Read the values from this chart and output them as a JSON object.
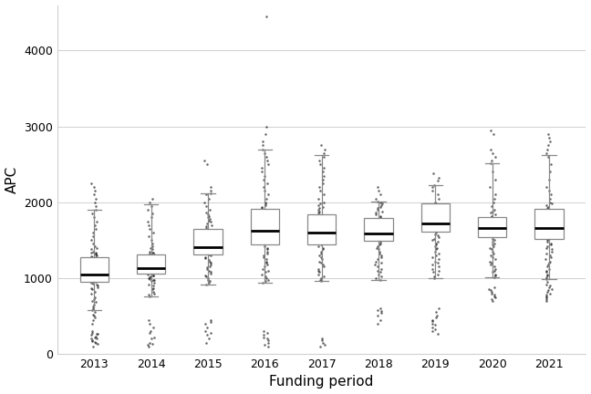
{
  "years": [
    2013,
    2014,
    2015,
    2016,
    2017,
    2018,
    2019,
    2020,
    2021
  ],
  "boxes": {
    "2013": {
      "q1": 950,
      "median": 1050,
      "q3": 1270,
      "whislo": 580,
      "whishi": 1900
    },
    "2014": {
      "q1": 1060,
      "median": 1130,
      "q3": 1310,
      "whislo": 760,
      "whishi": 1970
    },
    "2015": {
      "q1": 1310,
      "median": 1410,
      "q3": 1650,
      "whislo": 920,
      "whishi": 2120
    },
    "2016": {
      "q1": 1440,
      "median": 1620,
      "q3": 1910,
      "whislo": 940,
      "whishi": 2700
    },
    "2017": {
      "q1": 1440,
      "median": 1600,
      "q3": 1840,
      "whislo": 960,
      "whishi": 2620
    },
    "2018": {
      "q1": 1490,
      "median": 1590,
      "q3": 1790,
      "whislo": 980,
      "whishi": 2010
    },
    "2019": {
      "q1": 1610,
      "median": 1720,
      "q3": 1990,
      "whislo": 1000,
      "whishi": 2230
    },
    "2020": {
      "q1": 1540,
      "median": 1655,
      "q3": 1810,
      "whislo": 1010,
      "whishi": 2510
    },
    "2021": {
      "q1": 1510,
      "median": 1660,
      "q3": 1910,
      "whislo": 990,
      "whishi": 2620
    }
  },
  "points": {
    "2013": [
      100,
      130,
      150,
      160,
      170,
      180,
      200,
      210,
      220,
      230,
      250,
      260,
      270,
      280,
      300,
      400,
      450,
      480,
      500,
      520,
      550,
      580,
      600,
      620,
      650,
      680,
      700,
      720,
      750,
      800,
      820,
      850,
      870,
      880,
      900,
      920,
      930,
      940,
      950,
      960,
      970,
      980,
      990,
      1000,
      1010,
      1020,
      1030,
      1040,
      1050,
      1060,
      1070,
      1080,
      1090,
      1100,
      1110,
      1120,
      1130,
      1140,
      1150,
      1160,
      1170,
      1180,
      1190,
      1200,
      1210,
      1220,
      1230,
      1240,
      1250,
      1260,
      1270,
      1280,
      1290,
      1300,
      1310,
      1320,
      1330,
      1340,
      1350,
      1380,
      1400,
      1420,
      1450,
      1500,
      1550,
      1600,
      1650,
      1700,
      1750,
      1800,
      1850,
      1900,
      1950,
      2000,
      2050,
      2100,
      2150,
      2200,
      2250
    ],
    "2014": [
      100,
      120,
      130,
      150,
      200,
      220,
      280,
      300,
      350,
      400,
      450,
      760,
      780,
      800,
      820,
      850,
      870,
      900,
      920,
      940,
      960,
      970,
      980,
      990,
      1000,
      1010,
      1020,
      1030,
      1040,
      1050,
      1060,
      1070,
      1080,
      1090,
      1100,
      1110,
      1120,
      1130,
      1140,
      1150,
      1160,
      1170,
      1180,
      1190,
      1200,
      1210,
      1220,
      1230,
      1240,
      1250,
      1260,
      1270,
      1280,
      1290,
      1300,
      1310,
      1320,
      1330,
      1340,
      1350,
      1380,
      1400,
      1420,
      1450,
      1500,
      1550,
      1600,
      1650,
      1700,
      1750,
      1800,
      1850,
      1900,
      1950,
      2000,
      2050
    ],
    "2015": [
      150,
      200,
      250,
      280,
      300,
      350,
      400,
      420,
      450,
      920,
      940,
      960,
      980,
      1000,
      1020,
      1040,
      1060,
      1080,
      1100,
      1120,
      1140,
      1160,
      1180,
      1200,
      1220,
      1240,
      1260,
      1280,
      1300,
      1310,
      1320,
      1330,
      1340,
      1360,
      1380,
      1400,
      1410,
      1420,
      1440,
      1460,
      1480,
      1500,
      1520,
      1540,
      1560,
      1580,
      1600,
      1620,
      1640,
      1660,
      1680,
      1700,
      1720,
      1740,
      1760,
      1780,
      1800,
      1820,
      1840,
      1860,
      1900,
      1950,
      2000,
      2050,
      2100,
      2120,
      2150,
      2200,
      2500,
      2550
    ],
    "2016": [
      100,
      120,
      150,
      180,
      200,
      220,
      250,
      280,
      300,
      940,
      960,
      980,
      1000,
      1020,
      1050,
      1080,
      1100,
      1120,
      1150,
      1180,
      1200,
      1220,
      1250,
      1280,
      1300,
      1320,
      1350,
      1380,
      1400,
      1420,
      1440,
      1460,
      1480,
      1500,
      1520,
      1540,
      1560,
      1580,
      1600,
      1620,
      1640,
      1660,
      1680,
      1700,
      1720,
      1740,
      1760,
      1780,
      1800,
      1820,
      1840,
      1860,
      1880,
      1900,
      1920,
      1940,
      1960,
      1980,
      2000,
      2050,
      2100,
      2150,
      2200,
      2250,
      2300,
      2350,
      2400,
      2450,
      2500,
      2550,
      2600,
      2650,
      2700,
      2750,
      2800,
      2900,
      3000,
      4450
    ],
    "2017": [
      100,
      120,
      150,
      180,
      200,
      960,
      980,
      1000,
      1020,
      1050,
      1080,
      1100,
      1120,
      1150,
      1180,
      1200,
      1220,
      1250,
      1280,
      1300,
      1320,
      1350,
      1380,
      1400,
      1420,
      1440,
      1460,
      1480,
      1500,
      1520,
      1540,
      1560,
      1580,
      1600,
      1620,
      1640,
      1660,
      1680,
      1700,
      1720,
      1740,
      1760,
      1780,
      1800,
      1820,
      1840,
      1860,
      1880,
      1900,
      1920,
      1940,
      1960,
      1980,
      2000,
      2050,
      2100,
      2150,
      2200,
      2250,
      2300,
      2350,
      2400,
      2450,
      2500,
      2550,
      2600,
      2650,
      2700,
      2750
    ],
    "2018": [
      400,
      450,
      500,
      540,
      560,
      580,
      600,
      980,
      1000,
      1020,
      1050,
      1080,
      1100,
      1120,
      1150,
      1180,
      1200,
      1220,
      1250,
      1280,
      1300,
      1320,
      1350,
      1380,
      1400,
      1420,
      1440,
      1460,
      1480,
      1500,
      1520,
      1540,
      1560,
      1580,
      1590,
      1600,
      1620,
      1640,
      1660,
      1680,
      1700,
      1720,
      1740,
      1760,
      1780,
      1800,
      1820,
      1840,
      1860,
      1880,
      1900,
      1920,
      1940,
      1960,
      1980,
      2000,
      2010,
      2050,
      2100,
      2150,
      2200
    ],
    "2019": [
      270,
      300,
      320,
      350,
      380,
      400,
      430,
      450,
      480,
      500,
      550,
      600,
      1000,
      1020,
      1050,
      1080,
      1100,
      1120,
      1150,
      1180,
      1200,
      1220,
      1250,
      1280,
      1300,
      1320,
      1350,
      1380,
      1400,
      1420,
      1440,
      1460,
      1480,
      1500,
      1520,
      1540,
      1560,
      1580,
      1600,
      1620,
      1640,
      1660,
      1680,
      1700,
      1720,
      1740,
      1760,
      1780,
      1800,
      1820,
      1840,
      1860,
      1880,
      1900,
      1920,
      1940,
      1960,
      1980,
      2000,
      2050,
      2100,
      2150,
      2200,
      2230,
      2280,
      2320,
      2380
    ],
    "2020": [
      700,
      720,
      740,
      760,
      780,
      800,
      820,
      840,
      860,
      880,
      1010,
      1030,
      1050,
      1080,
      1100,
      1120,
      1150,
      1180,
      1200,
      1220,
      1250,
      1280,
      1300,
      1320,
      1350,
      1380,
      1400,
      1420,
      1440,
      1460,
      1480,
      1500,
      1520,
      1540,
      1560,
      1580,
      1600,
      1620,
      1640,
      1660,
      1680,
      1700,
      1720,
      1740,
      1760,
      1780,
      1800,
      1820,
      1840,
      1860,
      1880,
      1900,
      1950,
      2000,
      2050,
      2100,
      2200,
      2300,
      2400,
      2510,
      2550,
      2600,
      2650,
      2700,
      2900,
      2950
    ],
    "2021": [
      700,
      720,
      740,
      760,
      780,
      800,
      820,
      840,
      860,
      880,
      900,
      920,
      950,
      990,
      1010,
      1030,
      1050,
      1080,
      1100,
      1120,
      1150,
      1180,
      1200,
      1220,
      1250,
      1280,
      1300,
      1320,
      1350,
      1380,
      1400,
      1420,
      1440,
      1460,
      1480,
      1500,
      1520,
      1540,
      1560,
      1580,
      1600,
      1620,
      1640,
      1660,
      1680,
      1700,
      1720,
      1740,
      1760,
      1780,
      1800,
      1820,
      1840,
      1860,
      1880,
      1900,
      1920,
      1940,
      1960,
      1980,
      2000,
      2050,
      2100,
      2150,
      2200,
      2300,
      2400,
      2500,
      2600,
      2650,
      2700,
      2750,
      2800,
      2850,
      2900
    ]
  },
  "ylim": [
    0,
    4600
  ],
  "yticks": [
    0,
    1000,
    2000,
    3000,
    4000
  ],
  "xlabel": "Funding period",
  "ylabel": "APC",
  "box_color": "white",
  "box_edge_color": "#888888",
  "median_color": "black",
  "whisker_color": "#888888",
  "cap_color": "#888888",
  "point_color": "black",
  "grid_color": "#d0d0d0",
  "bg_color": "white",
  "box_width": 0.5,
  "point_size": 1.8,
  "point_alpha": 0.6
}
